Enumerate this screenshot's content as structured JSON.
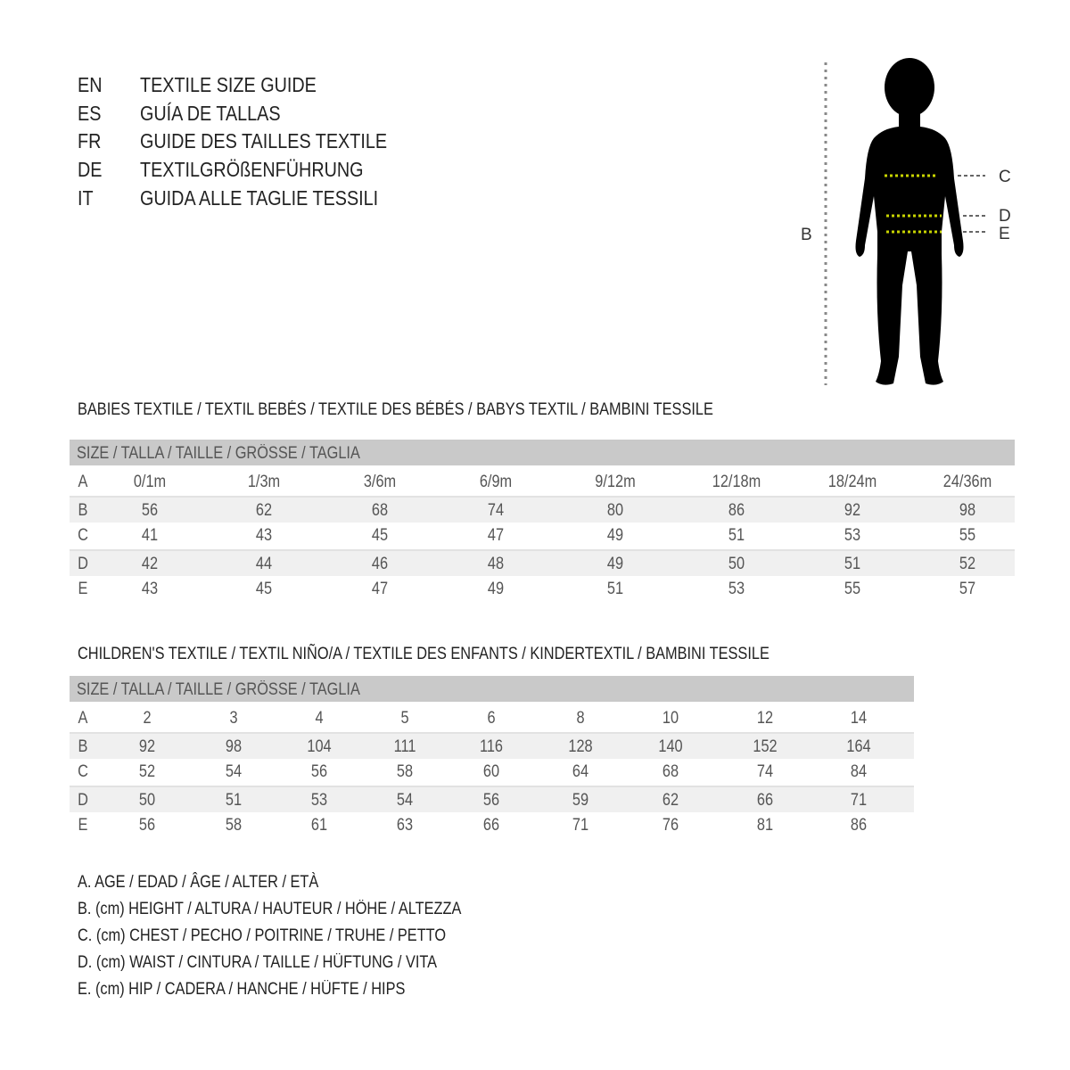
{
  "titles": [
    {
      "code": "EN",
      "text": "TEXTILE SIZE GUIDE"
    },
    {
      "code": "ES",
      "text": "GUÍA DE TALLAS"
    },
    {
      "code": "FR",
      "text": "GUIDE DES TAILLES TEXTILE"
    },
    {
      "code": "DE",
      "text": "TEXTILGRÖßENFÜHRUNG"
    },
    {
      "code": "IT",
      "text": "GUIDA ALLE TAGLIE TESSILI"
    }
  ],
  "figure": {
    "height_label": "B",
    "labels": [
      "C",
      "D",
      "E"
    ],
    "measure_color": "#c8d400"
  },
  "babies": {
    "title": "BABIES TEXTILE / TEXTIL BEBÉS / TEXTILE DES BÉBÉS / BABYS TEXTIL  / BAMBINI TESSILE",
    "header": "SIZE / TALLA / TAILLE / GRÖSSE / TAGLIA",
    "rows": [
      {
        "label": "A",
        "values": [
          "0/1m",
          "1/3m",
          "3/6m",
          "6/9m",
          "9/12m",
          "12/18m",
          "18/24m",
          "24/36m"
        ]
      },
      {
        "label": "B",
        "values": [
          "56",
          "62",
          "68",
          "74",
          "80",
          "86",
          "92",
          "98"
        ]
      },
      {
        "label": "C",
        "values": [
          "41",
          "43",
          "45",
          "47",
          "49",
          "51",
          "53",
          "55"
        ]
      },
      {
        "label": "D",
        "values": [
          "42",
          "44",
          "46",
          "48",
          "49",
          "50",
          "51",
          "52"
        ]
      },
      {
        "label": "E",
        "values": [
          "43",
          "45",
          "47",
          "49",
          "51",
          "53",
          "55",
          "57"
        ]
      }
    ]
  },
  "children": {
    "title": "CHILDREN'S TEXTILE / TEXTIL NIÑO/A / TEXTILE DES ENFANTS / KINDERTEXTIL / BAMBINI TESSILE",
    "header": "SIZE / TALLA / TAILLE / GRÖSSE / TAGLIA",
    "rows": [
      {
        "label": "A",
        "values": [
          "2",
          "3",
          "4",
          "5",
          "6",
          "8",
          "10",
          "12",
          "14"
        ]
      },
      {
        "label": "B",
        "values": [
          "92",
          "98",
          "104",
          "111",
          "116",
          "128",
          "140",
          "152",
          "164"
        ]
      },
      {
        "label": "C",
        "values": [
          "52",
          "54",
          "56",
          "58",
          "60",
          "64",
          "68",
          "74",
          "84"
        ]
      },
      {
        "label": "D",
        "values": [
          "50",
          "51",
          "53",
          "54",
          "56",
          "59",
          "62",
          "66",
          "71"
        ]
      },
      {
        "label": "E",
        "values": [
          "56",
          "58",
          "61",
          "63",
          "66",
          "71",
          "76",
          "81",
          "86"
        ]
      }
    ]
  },
  "legend": [
    "A. AGE / EDAD / ÂGE / ALTER / ETÀ",
    "B. (cm) HEIGHT / ALTURA / HAUTEUR / HÖHE / ALTEZZA",
    "C. (cm) CHEST / PECHO / POITRINE / TRUHE / PETTO",
    "D. (cm) WAIST / CINTURA / TAILLE / HÜFTUNG / VITA",
    "E. (cm) HIP / CADERA / HANCHE / HÜFTE / HIPS"
  ]
}
